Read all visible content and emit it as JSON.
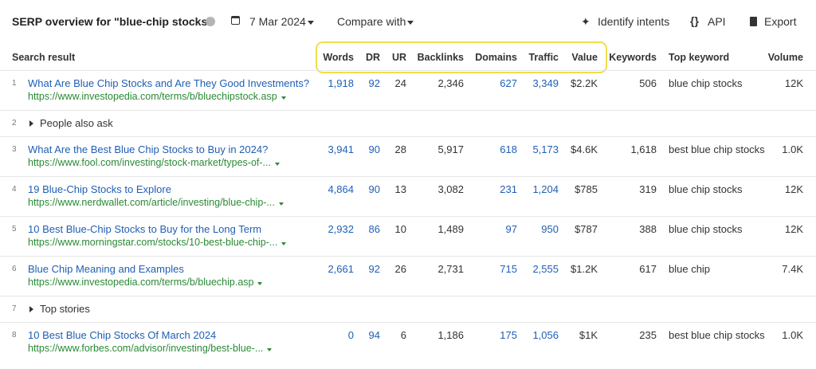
{
  "header": {
    "title": "SERP overview for \"blue-chip stocks\"",
    "date": "7 Mar 2024",
    "compare": "Compare with",
    "actions": [
      "Identify intents",
      "API",
      "Export"
    ]
  },
  "table": {
    "columns": [
      "Search result",
      "Words",
      "DR",
      "UR",
      "Backlinks",
      "Domains",
      "Traffic",
      "Value",
      "Keywords",
      "Top keyword",
      "Volume"
    ],
    "rows": [
      {
        "position": "1",
        "title": "What Are Blue Chip Stocks and Are They Good Investments?",
        "url": "https://www.investopedia.com/terms/b/bluechipstock.asp",
        "cells": [
          "1,918",
          "92",
          "24",
          "2,346",
          "627",
          "3,349",
          "$2.2K",
          "506",
          "blue chip stocks",
          "12K"
        ]
      },
      {
        "position": "2",
        "feature": "People also ask"
      },
      {
        "position": "3",
        "title": "What Are the Best Blue Chip Stocks to Buy in 2024?",
        "url": "https://www.fool.com/investing/stock-market/types-of-...",
        "cells": [
          "3,941",
          "90",
          "28",
          "5,917",
          "618",
          "5,173",
          "$4.6K",
          "1,618",
          "best blue chip stocks",
          "1.0K"
        ]
      },
      {
        "position": "4",
        "title": "19 Blue-Chip Stocks to Explore",
        "url": "https://www.nerdwallet.com/article/investing/blue-chip-...",
        "cells": [
          "4,864",
          "90",
          "13",
          "3,082",
          "231",
          "1,204",
          "$785",
          "319",
          "blue chip stocks",
          "12K"
        ]
      },
      {
        "position": "5",
        "title": "10 Best Blue-Chip Stocks to Buy for the Long Term",
        "url": "https://www.morningstar.com/stocks/10-best-blue-chip-...",
        "cells": [
          "2,932",
          "86",
          "10",
          "1,489",
          "97",
          "950",
          "$787",
          "388",
          "blue chip stocks",
          "12K"
        ]
      },
      {
        "position": "6",
        "title": "Blue Chip Meaning and Examples",
        "url": "https://www.investopedia.com/terms/b/bluechip.asp",
        "cells": [
          "2,661",
          "92",
          "26",
          "2,731",
          "715",
          "2,555",
          "$1.2K",
          "617",
          "blue chip",
          "7.4K"
        ]
      },
      {
        "position": "7",
        "feature": "Top stories"
      },
      {
        "position": "8",
        "title": "10 Best Blue Chip Stocks Of March 2024",
        "url": "https://www.forbes.com/advisor/investing/best-blue-...",
        "cells": [
          "0",
          "94",
          "6",
          "1,186",
          "175",
          "1,056",
          "$1K",
          "235",
          "best blue chip stocks",
          "1.0K"
        ]
      }
    ]
  }
}
